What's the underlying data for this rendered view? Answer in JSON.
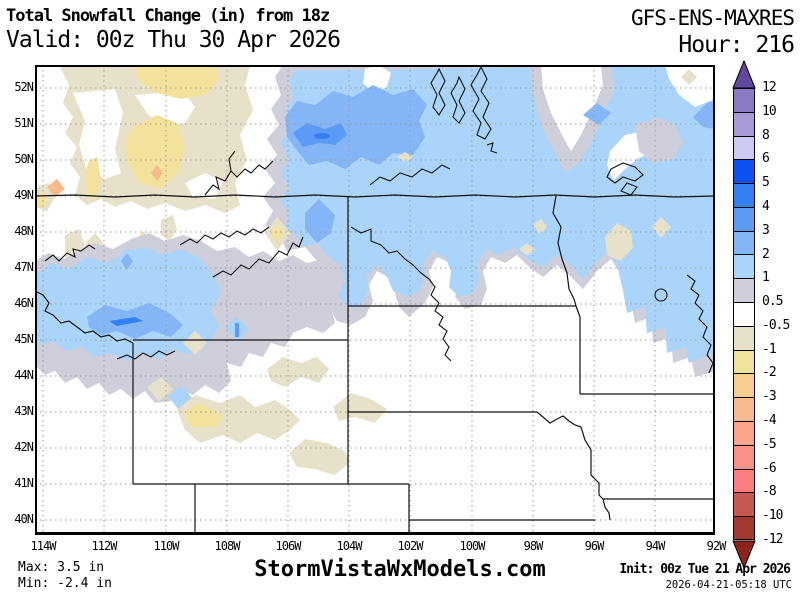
{
  "header": {
    "title": "Total Snowfall Change (in) from 18z",
    "valid": "Valid: 00z Thu 30 Apr 2026",
    "model": "GFS-ENS-MAXRES",
    "hour": "Hour: 216"
  },
  "map": {
    "lat_labels": [
      "52N",
      "51N",
      "50N",
      "49N",
      "48N",
      "47N",
      "46N",
      "45N",
      "44N",
      "43N",
      "42N",
      "41N",
      "40N"
    ],
    "lon_labels": [
      "114W",
      "112W",
      "110W",
      "108W",
      "106W",
      "104W",
      "102W",
      "100W",
      "98W",
      "96W",
      "94W",
      "92W"
    ]
  },
  "colorbar": {
    "boundary_labels": [
      "12",
      "10",
      "8",
      "6",
      "5",
      "4",
      "3",
      "2",
      "1",
      "0.5",
      "-0.5",
      "-1",
      "-2",
      "-3",
      "-4",
      "-5",
      "-6",
      "-8",
      "-10",
      "-12"
    ],
    "segment_colors": [
      "#8a7ac6",
      "#a89ad4",
      "#cbcbf2",
      "#0b51f3",
      "#3380f3",
      "#5b9bf5",
      "#84b6f7",
      "#aad4f9",
      "#cfcfdc",
      "#ffffff",
      "#e8e1ca",
      "#f2e29b",
      "#f6cf8e",
      "#f8ba8c",
      "#f8a58c",
      "#f9918a",
      "#fa7d7f",
      "#c65a53",
      "#a23a33"
    ],
    "arrow_top_color": "#61489f",
    "arrow_bottom_color": "#8c241e"
  },
  "map_colors": {
    "gray": "#cfcfdc",
    "pale_blue": "#aad4f9",
    "medium_blue": "#84b6f7",
    "blue_3": "#5b9bf5",
    "blue_4": "#3380f3",
    "tan": "#e8e1ca",
    "yellow": "#f2e29b",
    "sand": "#f6cf8e",
    "orange": "#f8ba8c",
    "white": "#ffffff"
  },
  "footer": {
    "max_label": "Max: 3.5 in",
    "min_label": "Min: -2.4 in",
    "watermark": "StormVistaWxModels.com",
    "init_line": "Init: 00z Tue 21 Apr 2026",
    "init_utc": "2026-04-21-05:18 UTC"
  }
}
